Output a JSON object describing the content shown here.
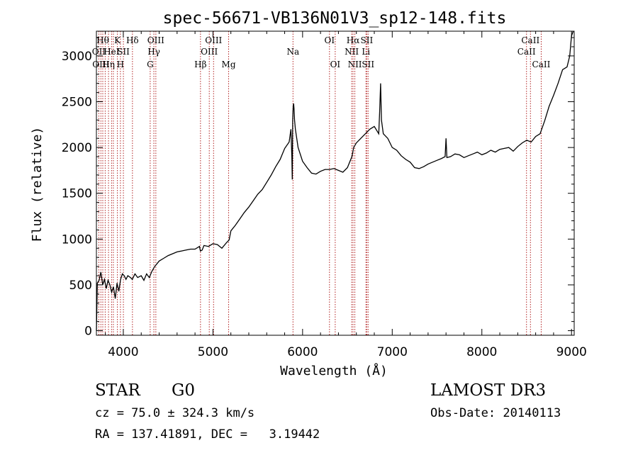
{
  "chart_data": {
    "type": "line",
    "title": "spec-56671-VB136N01V3_sp12-148.fits",
    "xlabel": "Wavelength (Å)",
    "ylabel": "Flux (relative)",
    "xlim": [
      3700,
      9030
    ],
    "ylim": [
      -50,
      3270
    ],
    "x_ticks": [
      4000,
      5000,
      6000,
      7000,
      8000,
      9000
    ],
    "y_ticks": [
      0,
      500,
      1000,
      1500,
      2000,
      2500,
      3000
    ],
    "grid": false,
    "series": [
      {
        "name": "flux",
        "x": [
          3700,
          3710,
          3730,
          3750,
          3770,
          3790,
          3810,
          3830,
          3850,
          3870,
          3890,
          3910,
          3930,
          3950,
          3970,
          3990,
          4010,
          4030,
          4050,
          4080,
          4100,
          4130,
          4160,
          4200,
          4230,
          4260,
          4290,
          4320,
          4350,
          4400,
          4450,
          4500,
          4550,
          4600,
          4650,
          4700,
          4750,
          4800,
          4850,
          4860,
          4880,
          4900,
          4950,
          5000,
          5050,
          5100,
          5150,
          5180,
          5200,
          5250,
          5300,
          5350,
          5400,
          5450,
          5500,
          5550,
          5600,
          5650,
          5700,
          5750,
          5800,
          5850,
          5870,
          5880,
          5885,
          5890,
          5895,
          5900,
          5905,
          5910,
          5920,
          5950,
          6000,
          6050,
          6100,
          6150,
          6200,
          6250,
          6300,
          6350,
          6400,
          6450,
          6500,
          6550,
          6560,
          6570,
          6600,
          6650,
          6700,
          6750,
          6800,
          6850,
          6860,
          6870,
          6880,
          6900,
          6950,
          7000,
          7050,
          7100,
          7150,
          7200,
          7250,
          7300,
          7350,
          7400,
          7450,
          7500,
          7550,
          7590,
          7600,
          7610,
          7650,
          7700,
          7750,
          7800,
          7850,
          7900,
          7950,
          8000,
          8050,
          8100,
          8150,
          8200,
          8250,
          8300,
          8350,
          8400,
          8450,
          8500,
          8550,
          8600,
          8650,
          8700,
          8750,
          8800,
          8850,
          8900,
          8950,
          8980,
          9000,
          9020
        ],
        "y": [
          0,
          520,
          550,
          640,
          500,
          560,
          460,
          550,
          500,
          420,
          480,
          350,
          520,
          430,
          560,
          620,
          600,
          560,
          600,
          580,
          560,
          620,
          580,
          600,
          550,
          620,
          580,
          650,
          700,
          760,
          790,
          820,
          840,
          860,
          870,
          880,
          890,
          890,
          920,
          870,
          880,
          930,
          920,
          950,
          940,
          900,
          960,
          990,
          1090,
          1150,
          1220,
          1290,
          1350,
          1420,
          1490,
          1540,
          1620,
          1700,
          1790,
          1870,
          1990,
          2060,
          2200,
          1900,
          1650,
          2300,
          2450,
          2480,
          2420,
          2300,
          2200,
          2000,
          1850,
          1780,
          1720,
          1710,
          1740,
          1760,
          1760,
          1770,
          1750,
          1730,
          1780,
          1900,
          1950,
          2000,
          2050,
          2100,
          2150,
          2200,
          2230,
          2150,
          2400,
          2700,
          2300,
          2150,
          2100,
          2000,
          1970,
          1910,
          1870,
          1840,
          1780,
          1770,
          1790,
          1820,
          1840,
          1860,
          1880,
          1900,
          2100,
          1890,
          1900,
          1930,
          1920,
          1890,
          1910,
          1930,
          1950,
          1920,
          1940,
          1970,
          1950,
          1980,
          1990,
          2000,
          1960,
          2010,
          2050,
          2080,
          2060,
          2120,
          2150,
          2290,
          2450,
          2570,
          2700,
          2850,
          2880,
          3000,
          3220,
          3270
        ]
      }
    ],
    "lines": [
      {
        "wavelength": 3727,
        "label": "OII",
        "row": 2
      },
      {
        "wavelength": 3750,
        "label": "OIII",
        "row": 3
      },
      {
        "wavelength": 3771,
        "label": "Hθ",
        "row": 1
      },
      {
        "wavelength": 3798,
        "label": "",
        "row": 1
      },
      {
        "wavelength": 3835,
        "label": "Hη",
        "row": 3
      },
      {
        "wavelength": 3869,
        "label": "HeI",
        "row": 2
      },
      {
        "wavelength": 3889,
        "label": "",
        "row": 2
      },
      {
        "wavelength": 3934,
        "label": "K",
        "row": 1
      },
      {
        "wavelength": 3968,
        "label": "H",
        "row": 3
      },
      {
        "wavelength": 4001,
        "label": "SII",
        "row": 2
      },
      {
        "wavelength": 4102,
        "label": "Hδ",
        "row": 1
      },
      {
        "wavelength": 4300,
        "label": "G",
        "row": 3
      },
      {
        "wavelength": 4341,
        "label": "Hγ",
        "row": 2
      },
      {
        "wavelength": 4363,
        "label": "OIII",
        "row": 1
      },
      {
        "wavelength": 4861,
        "label": "Hβ",
        "row": 3
      },
      {
        "wavelength": 4959,
        "label": "OIII",
        "row": 2
      },
      {
        "wavelength": 5007,
        "label": "OIII",
        "row": 1
      },
      {
        "wavelength": 5175,
        "label": "Mg",
        "row": 3
      },
      {
        "wavelength": 5893,
        "label": "Na",
        "row": 2
      },
      {
        "wavelength": 6300,
        "label": "OI",
        "row": 1
      },
      {
        "wavelength": 6364,
        "label": "OI",
        "row": 3
      },
      {
        "wavelength": 6548,
        "label": "NII",
        "row": 2
      },
      {
        "wavelength": 6563,
        "label": "Hα",
        "row": 1
      },
      {
        "wavelength": 6583,
        "label": "NII",
        "row": 3
      },
      {
        "wavelength": 6707,
        "label": "Li",
        "row": 2
      },
      {
        "wavelength": 6716,
        "label": "SII",
        "row": 1
      },
      {
        "wavelength": 6731,
        "label": "SII",
        "row": 3
      },
      {
        "wavelength": 8498,
        "label": "CaII",
        "row": 2
      },
      {
        "wavelength": 8542,
        "label": "CaII",
        "row": 1
      },
      {
        "wavelength": 8662,
        "label": "CaII",
        "row": 3
      }
    ],
    "colors": {
      "spectrum": "#000000",
      "line_marker": "#b22222",
      "axis": "#000000"
    }
  },
  "info": {
    "class_label": "STAR",
    "subclass": "G0",
    "survey": "LAMOST DR3",
    "redshift": "cz = 75.0 ± 324.3 km/s",
    "obs_date": "Obs-Date: 20140113",
    "coords": "RA = 137.41891, DEC =   3.19442"
  }
}
